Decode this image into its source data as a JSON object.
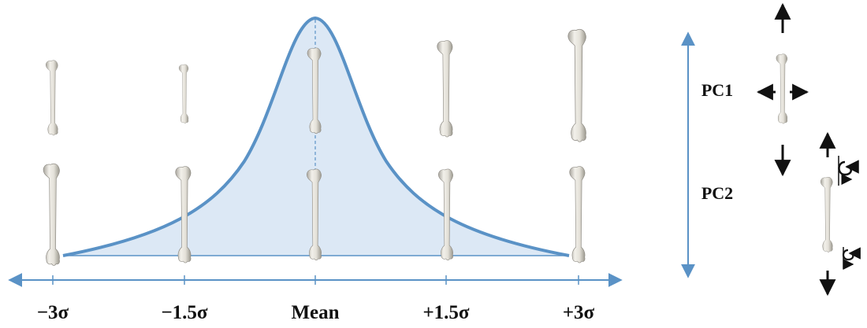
{
  "x_axis": {
    "tick_labels": [
      "−3σ",
      "−1.5σ",
      "Mean",
      "+1.5σ",
      "+3σ"
    ]
  },
  "pc_axis": {
    "labels": [
      "PC1",
      "PC2"
    ]
  },
  "colors": {
    "curve_stroke": "#5a92c6",
    "curve_fill": "#dce8f5",
    "axis": "#5a92c6",
    "bone": "#d9d6ce",
    "bone_outline": "#8e8b84",
    "arrows": "#111111"
  },
  "icons": [
    "bone-icon",
    "arrow-icon",
    "rotation-arrow-icon"
  ]
}
